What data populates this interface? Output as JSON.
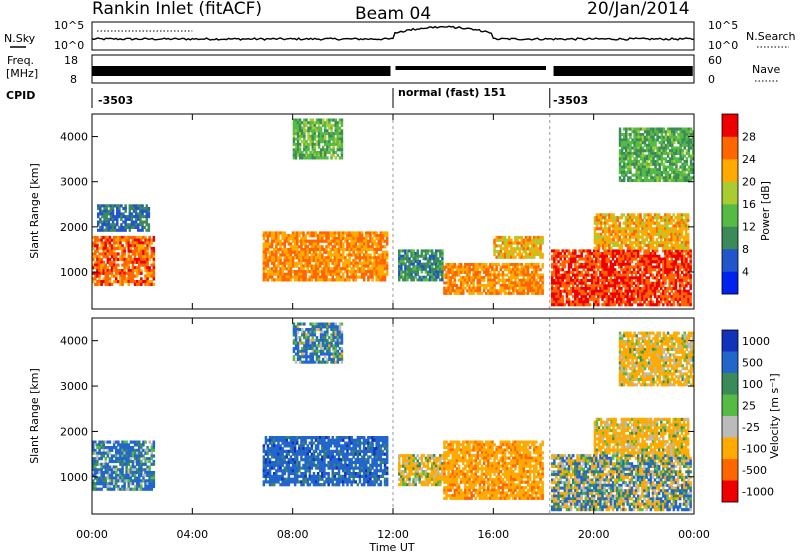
{
  "header": {
    "station": "Rankin Inlet (fitACF)",
    "beam": "Beam 04",
    "date": "20/Jan/2014"
  },
  "status_panels": {
    "nsky_label": "N.Sky",
    "nsearch_label": "N.Search",
    "freq_label_top": "Freq.",
    "freq_label_bottom": "[MHz]",
    "nave_label": "Nave",
    "cpid_label": "CPID",
    "left_ticks_n": [
      "10^5",
      "10^0"
    ],
    "right_ticks_n": [
      "10^5",
      "10^0"
    ],
    "left_ticks_freq": [
      "18",
      "8"
    ],
    "right_ticks_nave": [
      "60",
      "0"
    ],
    "cpid_segments": [
      {
        "label": "-3503",
        "start": 0.0,
        "end": 12.0
      },
      {
        "label": "normal (fast) 151",
        "start": 12.0,
        "end": 18.25
      },
      {
        "label": "-3503",
        "start": 18.25,
        "end": 24.0
      }
    ]
  },
  "x_axis": {
    "label": "Time UT",
    "ticks": [
      "00:00",
      "04:00",
      "08:00",
      "12:00",
      "16:00",
      "20:00",
      "00:00"
    ],
    "range_hours": [
      0,
      24
    ]
  },
  "power_panel": {
    "ylabel": "Slant Range [km]",
    "yticks": [
      "1000",
      "2000",
      "3000",
      "4000"
    ],
    "colorbar_label": "Power [dB]",
    "colorbar_ticks": [
      "4",
      "8",
      "12",
      "16",
      "20",
      "24",
      "28"
    ],
    "colors": [
      "#0022ee",
      "#2255cc",
      "#3a8a5a",
      "#55bb44",
      "#aacc33",
      "#ffaa00",
      "#ff6600",
      "#ee0000"
    ]
  },
  "velocity_panel": {
    "ylabel": "Slant Range [km]",
    "yticks": [
      "1000",
      "2000",
      "3000",
      "4000"
    ],
    "colorbar_label": "Velocity [m s⁻¹]",
    "colorbar_ticks": [
      "1000",
      "500",
      "100",
      "25",
      "-25",
      "-100",
      "-500",
      "-1000"
    ],
    "colors": [
      "#1133bb",
      "#2266cc",
      "#3a8a5a",
      "#55bb44",
      "#bbbbbb",
      "#ffaa00",
      "#ff6600",
      "#ee0000"
    ]
  },
  "chart_data": [
    {
      "type": "heatmap",
      "title": "Power [dB]",
      "xlabel": "Time UT",
      "ylabel": "Slant Range [km]",
      "xlim": [
        0,
        24
      ],
      "ylim": [
        180,
        4500
      ],
      "zlim": [
        0,
        30
      ],
      "blobs": [
        {
          "t0": 0.0,
          "t1": 2.5,
          "r0": 700,
          "r1": 1800,
          "z": 26
        },
        {
          "t0": 0.2,
          "t1": 2.3,
          "r0": 1900,
          "r1": 2500,
          "z": 8
        },
        {
          "t0": 6.8,
          "t1": 11.8,
          "r0": 800,
          "r1": 1900,
          "z": 24
        },
        {
          "t0": 8.0,
          "t1": 10.0,
          "r0": 3500,
          "r1": 4400,
          "z": 14
        },
        {
          "t0": 12.2,
          "t1": 14.0,
          "r0": 800,
          "r1": 1500,
          "z": 10
        },
        {
          "t0": 14.0,
          "t1": 18.0,
          "r0": 500,
          "r1": 1200,
          "z": 24
        },
        {
          "t0": 16.0,
          "t1": 18.0,
          "r0": 1300,
          "r1": 1800,
          "z": 22
        },
        {
          "t0": 18.3,
          "t1": 23.9,
          "r0": 250,
          "r1": 1500,
          "z": 28
        },
        {
          "t0": 20.0,
          "t1": 23.8,
          "r0": 1500,
          "r1": 2300,
          "z": 22
        },
        {
          "t0": 21.0,
          "t1": 24.0,
          "r0": 3000,
          "r1": 4200,
          "z": 13
        }
      ]
    },
    {
      "type": "heatmap",
      "title": "Velocity [m s⁻¹]",
      "xlabel": "Time UT",
      "ylabel": "Slant Range [km]",
      "xlim": [
        0,
        24
      ],
      "ylim": [
        180,
        4500
      ],
      "zlim": [
        -1000,
        1000
      ],
      "blobs": [
        {
          "t0": 0.0,
          "t1": 2.5,
          "r0": 700,
          "r1": 1800,
          "z": 150
        },
        {
          "t0": 6.8,
          "t1": 11.8,
          "r0": 800,
          "r1": 1900,
          "z": 300
        },
        {
          "t0": 8.0,
          "t1": 10.0,
          "r0": 3500,
          "r1": 4400,
          "z": 120
        },
        {
          "t0": 12.2,
          "t1": 14.0,
          "r0": 800,
          "r1": 1500,
          "z": -150
        },
        {
          "t0": 14.0,
          "t1": 18.0,
          "r0": 500,
          "r1": 1800,
          "z": -350
        },
        {
          "t0": 18.3,
          "t1": 23.9,
          "r0": 250,
          "r1": 1500,
          "z": 0
        },
        {
          "t0": 20.0,
          "t1": 23.8,
          "r0": 1500,
          "r1": 2300,
          "z": -200
        },
        {
          "t0": 21.0,
          "t1": 24.0,
          "r0": 3000,
          "r1": 4200,
          "z": -200
        }
      ]
    }
  ]
}
